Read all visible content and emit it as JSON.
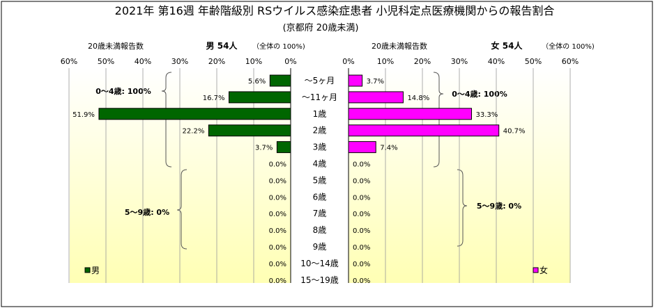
{
  "chart_data": {
    "type": "bar",
    "title": "2021年 第16週 年齢階級別 RSウイルス感染症患者 小児科定点医療機関からの報告割合",
    "subtitle": "(京都府 20歳未満)",
    "categories": [
      "～5ヶ月",
      "～11ヶ月",
      "1歳",
      "2歳",
      "3歳",
      "4歳",
      "5歳",
      "6歳",
      "7歳",
      "8歳",
      "9歳",
      "10～14歳",
      "15～19歳"
    ],
    "x_ticks": [
      "60%",
      "50%",
      "40%",
      "30%",
      "20%",
      "10%",
      "0%"
    ],
    "x_ticks_right": [
      "0%",
      "10%",
      "20%",
      "30%",
      "40%",
      "50%",
      "60%"
    ],
    "xlim": [
      0,
      60
    ],
    "series": [
      {
        "name": "男",
        "side": "left",
        "color": "#006600",
        "axis_label": "20歳未満報告数",
        "header": "男 54人",
        "header_note": "（全体の 100%)",
        "values": [
          5.6,
          16.7,
          51.9,
          22.2,
          3.7,
          0.0,
          0.0,
          0.0,
          0.0,
          0.0,
          0.0,
          0.0,
          0.0
        ],
        "labels": [
          "5.6%",
          "16.7%",
          "51.9%",
          "22.2%",
          "3.7%",
          "0.0%",
          "0.0%",
          "0.0%",
          "0.0%",
          "0.0%",
          "0.0%",
          "0.0%",
          "0.0%"
        ],
        "group_labels": [
          "0～4歳: 100%",
          "5～9歳: 0%"
        ]
      },
      {
        "name": "女",
        "side": "right",
        "color": "#FF00FF",
        "axis_label": "20歳未満報告数",
        "header": "女 54人",
        "header_note": "（全体の 100%)",
        "values": [
          3.7,
          14.8,
          33.3,
          40.7,
          7.4,
          0.0,
          0.0,
          0.0,
          0.0,
          0.0,
          0.0,
          0.0,
          0.0
        ],
        "labels": [
          "3.7%",
          "14.8%",
          "33.3%",
          "40.7%",
          "7.4%",
          "0.0%",
          "0.0%",
          "0.0%",
          "0.0%",
          "0.0%",
          "0.0%",
          "0.0%",
          "0.0%"
        ],
        "group_labels": [
          "0～4歳: 100%",
          "5～9歳: 0%"
        ]
      }
    ],
    "grid": true,
    "legend": "bottom-left / bottom-right"
  }
}
